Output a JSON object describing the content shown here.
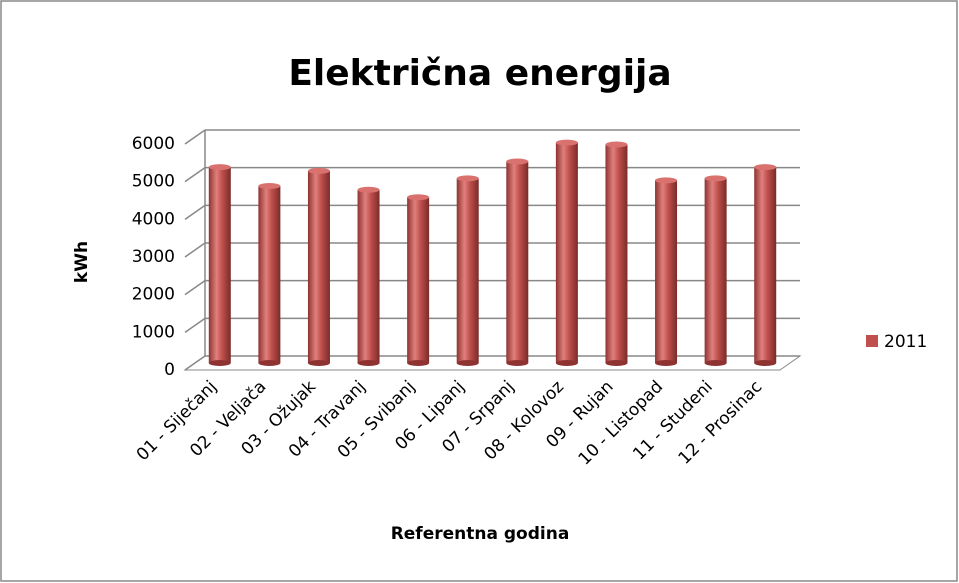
{
  "chart_data": {
    "type": "bar3d",
    "title": "Električna energija",
    "categories": [
      "01 - Siječanj",
      "02 - Veljača",
      "03 - Ožujak",
      "04 - Travanj",
      "05 - Svibanj",
      "06 - Lipanj",
      "07 - Srpanj",
      "08 - Kolovoz",
      "09 - Rujan",
      "10 - Listopad",
      "11 - Studeni",
      "12 - Prosinac"
    ],
    "series": [
      {
        "name": "2011",
        "color": "#c0504d",
        "values": [
          5200,
          4700,
          5100,
          4600,
          4400,
          4900,
          5350,
          5850,
          5800,
          4850,
          4900,
          5200
        ]
      }
    ],
    "ylim": [
      0,
      6000
    ],
    "yticks": [
      0,
      1000,
      2000,
      3000,
      4000,
      5000,
      6000
    ],
    "grid": true,
    "legend": "right",
    "ylabel": "kWh",
    "xlabel": "Referentna godina"
  }
}
